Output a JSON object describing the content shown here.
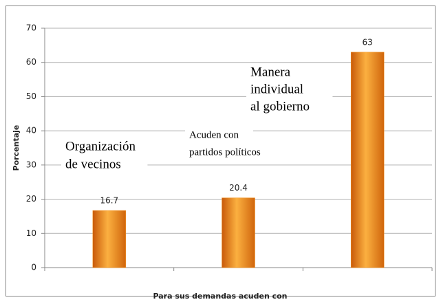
{
  "chart_data": {
    "type": "bar",
    "categories": [
      null,
      null,
      null
    ],
    "values": [
      16.7,
      20.4,
      63
    ],
    "color": "#f7941d",
    "ylim": [
      0,
      70
    ],
    "yticks": [
      0,
      10,
      20,
      30,
      40,
      50,
      60,
      70
    ],
    "grid": true,
    "ylabel": "Porcentaje",
    "xlabel": "Para sus demandas acuden con",
    "annotations": [
      [
        "Organización",
        "de vecinos"
      ],
      [
        "Acuden con",
        "partidos políticos"
      ],
      [
        "Manera",
        "individual",
        "al gobierno"
      ]
    ]
  }
}
